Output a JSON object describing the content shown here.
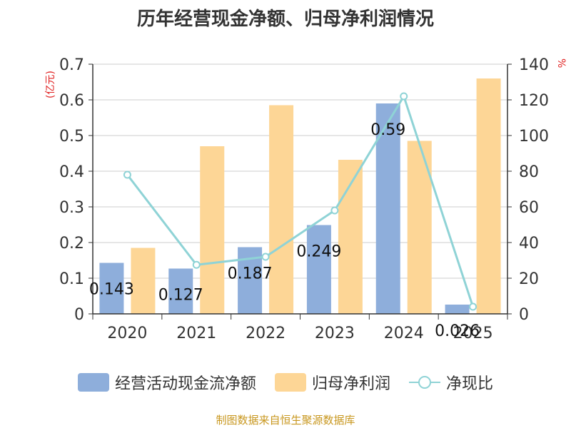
{
  "chart_data": {
    "type": "bar+line",
    "title": "历年经营现金净额、归母净利润情况",
    "left_unit": "(亿元)",
    "right_unit": "%",
    "categories": [
      "2020",
      "2021",
      "2022",
      "2023",
      "2024",
      "2025"
    ],
    "left_axis": {
      "min": 0,
      "max": 0.7,
      "ticks": [
        "0",
        "0.1",
        "0.2",
        "0.3",
        "0.4",
        "0.5",
        "0.6",
        "0.7"
      ]
    },
    "right_axis": {
      "min": 0,
      "max": 140,
      "ticks": [
        "0",
        "20",
        "40",
        "60",
        "80",
        "100",
        "120",
        "140"
      ]
    },
    "series": [
      {
        "name": "经营活动现金流净额",
        "type": "bar",
        "axis": "left",
        "color": "#8eaedb",
        "values": [
          0.143,
          0.127,
          0.187,
          0.249,
          0.59,
          0.026
        ],
        "labels": [
          "0.143",
          "0.127",
          "0.187",
          "0.249",
          "0.59",
          "0.026"
        ]
      },
      {
        "name": "归母净利润",
        "type": "bar",
        "axis": "left",
        "color": "#fdd696",
        "values": [
          0.185,
          0.47,
          0.585,
          0.432,
          0.485,
          0.66
        ]
      },
      {
        "name": "净现比",
        "type": "line",
        "axis": "right",
        "color": "#8fd3d6",
        "values": [
          78,
          27.5,
          32,
          58,
          122,
          4
        ]
      }
    ],
    "grid": true,
    "legend_position": "bottom"
  },
  "source_text": "制图数据来自恒生聚源数据库"
}
